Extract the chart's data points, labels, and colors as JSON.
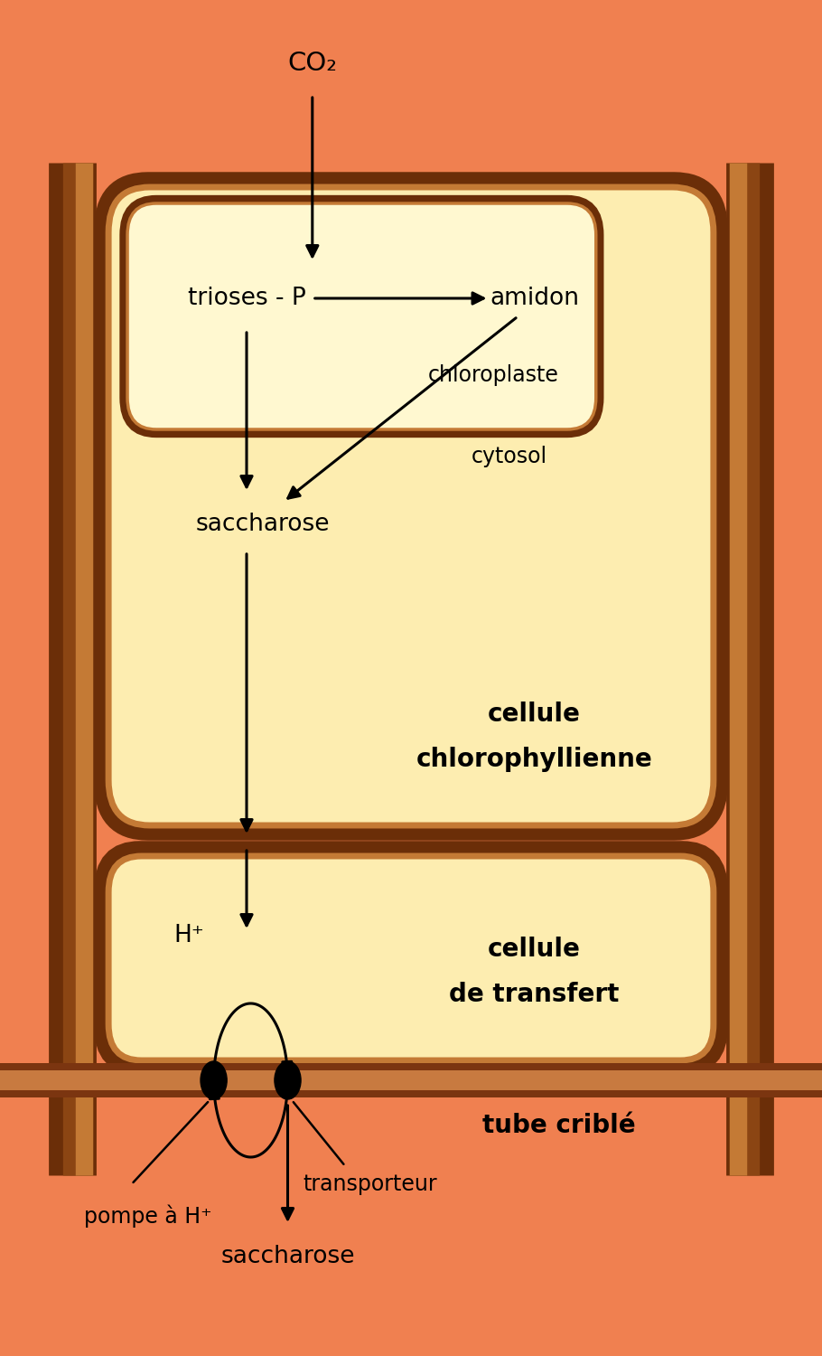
{
  "bg_color": "#F08050",
  "cell_fill": "#FDEDB0",
  "chloro_fill": "#FFF8D0",
  "outer_wall_dark": "#6B2E08",
  "outer_wall_mid": "#8B4513",
  "outer_wall_light": "#C47A35",
  "tube_dark": "#7B3510",
  "tube_mid": "#A04A20",
  "tube_light": "#C87A40",
  "text_black": "#000000",
  "co2_text": "CO₂",
  "trioses_text": "trioses - P",
  "amidon_text": "amidon",
  "chloroplaste_text": "chloroplaste",
  "cytosol_text": "cytosol",
  "saccharose1_text": "saccharose",
  "cellule_chloro_line1": "cellule",
  "cellule_chloro_line2": "chlorophyllienne",
  "h_plus_text": "H⁺",
  "cellule_transfert_line1": "cellule",
  "cellule_transfert_line2": "de transfert",
  "tube_crible_text": "tube criblé",
  "pompe_text": "pompe à H⁺",
  "transporteur_text": "transporteur",
  "saccharose2_text": "saccharose",
  "fig_width": 9.1,
  "fig_height": 15.0,
  "dpi": 100
}
